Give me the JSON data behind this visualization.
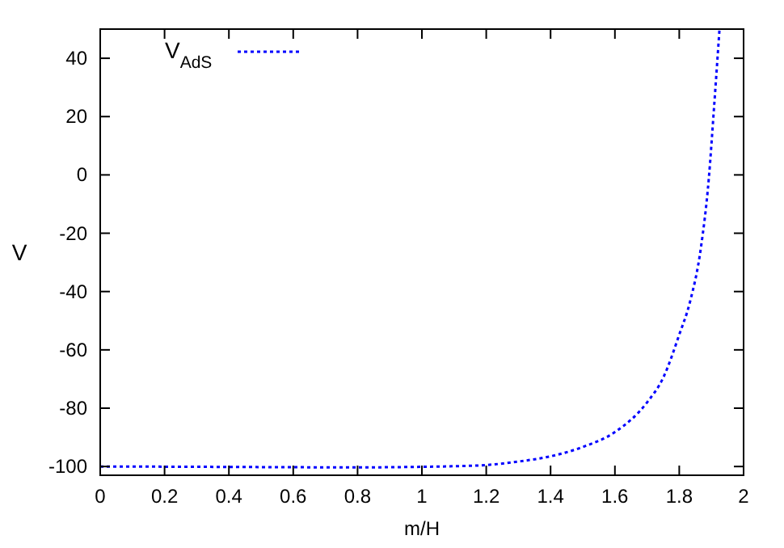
{
  "chart_data": {
    "type": "line",
    "xlabel": "m/H",
    "ylabel": "V",
    "xlim": [
      0,
      2
    ],
    "ylim": [
      -103,
      50
    ],
    "xticks": [
      0,
      0.2,
      0.4,
      0.6,
      0.8,
      1,
      1.2,
      1.4,
      1.6,
      1.8,
      2
    ],
    "yticks": [
      -100,
      -80,
      -60,
      -40,
      -20,
      0,
      20,
      40
    ],
    "grid": false,
    "legend": "top left",
    "line_style": "dotted",
    "x": [
      0,
      0.3,
      0.5,
      0.8,
      1.0,
      1.1,
      1.2,
      1.3,
      1.4,
      1.5,
      1.6,
      1.7,
      1.75,
      1.8,
      1.833,
      1.867,
      1.892,
      1.908,
      1.925
    ],
    "series": [
      {
        "name": "V$_{AdS}$",
        "color": "#0000ff",
        "values": [
          -100,
          -100.1,
          -100.2,
          -100.3,
          -100.1,
          -99.9,
          -99.5,
          -98.3,
          -96.5,
          -93.3,
          -88.2,
          -78,
          -69.6,
          -54.8,
          -43.7,
          -25.2,
          -1.1,
          22.9,
          49.8
        ]
      }
    ]
  }
}
